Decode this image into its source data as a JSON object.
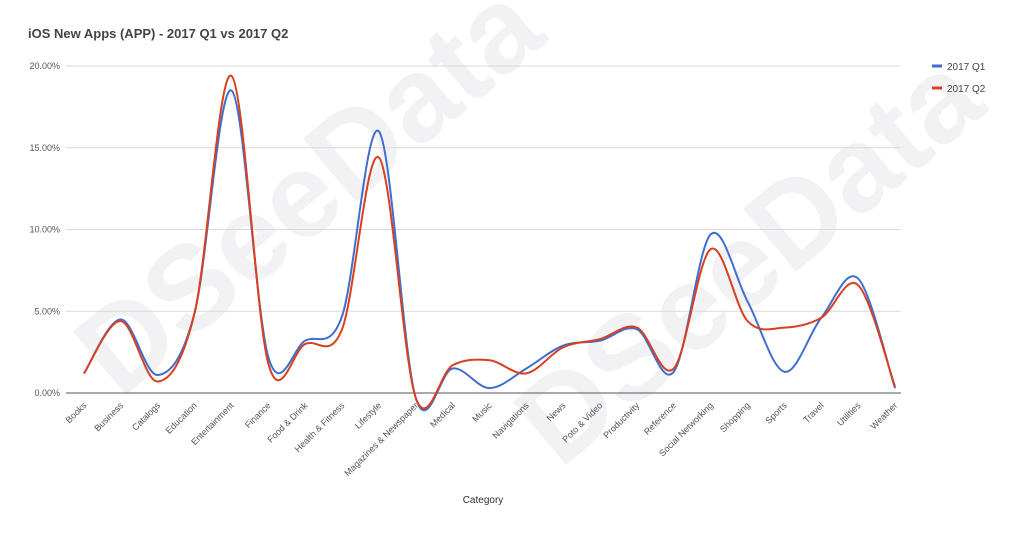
{
  "chart_data": {
    "type": "line",
    "title": "iOS New Apps (APP) - 2017 Q1 vs 2017 Q2",
    "xlabel": "Category",
    "ylabel": "",
    "ylim": [
      0,
      20
    ],
    "yticks": [
      "0.00%",
      "5.00%",
      "10.00%",
      "15.00%",
      "20.00%"
    ],
    "grid": true,
    "legend_position": "right",
    "watermark": "DSeeData",
    "categories": [
      "Books",
      "Business",
      "Catalogs",
      "Education",
      "Entertainment",
      "Finance",
      "Food & Drink",
      "Health & Fitness",
      "Lifestyle",
      "Magazines & Newspaper",
      "Medical",
      "Music",
      "Navigations",
      "News",
      "Poto & Video",
      "Productivity",
      "Reference",
      "Social Networking",
      "Shopping",
      "Sports",
      "Travel",
      "Utilities",
      "Weather"
    ],
    "series": [
      {
        "name": "2017 Q1",
        "color": "#3e6fcf",
        "values": [
          1.2,
          4.5,
          1.1,
          4.9,
          18.5,
          2.2,
          3.2,
          4.7,
          16.0,
          -0.3,
          1.5,
          0.3,
          1.5,
          2.9,
          3.2,
          3.9,
          1.3,
          9.7,
          5.6,
          1.3,
          4.6,
          7.0,
          0.3
        ]
      },
      {
        "name": "2017 Q2",
        "color": "#d8401f",
        "values": [
          1.2,
          4.4,
          0.7,
          4.9,
          19.4,
          1.8,
          3.0,
          3.9,
          14.4,
          -0.3,
          1.7,
          2.0,
          1.2,
          2.8,
          3.3,
          4.0,
          1.5,
          8.8,
          4.4,
          4.0,
          4.6,
          6.6,
          0.4
        ]
      }
    ]
  }
}
